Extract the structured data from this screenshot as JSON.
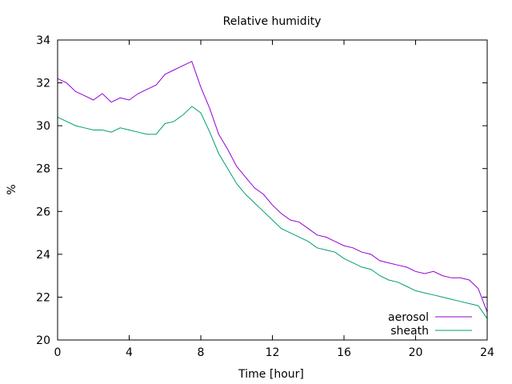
{
  "chart_data": {
    "type": "line",
    "title": "Relative humidity",
    "xlabel": "Time [hour]",
    "ylabel": "%",
    "xlim": [
      0,
      24
    ],
    "ylim": [
      20,
      34
    ],
    "xticks": [
      0,
      4,
      8,
      12,
      16,
      20,
      24
    ],
    "yticks": [
      20,
      22,
      24,
      26,
      28,
      30,
      32,
      34
    ],
    "grid": false,
    "legend_position": "bottom-right",
    "series": [
      {
        "name": "aerosol",
        "color": "#9400d3",
        "x": [
          0,
          0.5,
          1,
          1.5,
          2,
          2.5,
          3,
          3.5,
          4,
          4.5,
          5,
          5.5,
          6,
          6.5,
          7,
          7.5,
          8,
          8.5,
          9,
          9.5,
          10,
          10.5,
          11,
          11.5,
          12,
          12.5,
          13,
          13.5,
          14,
          14.5,
          15,
          15.5,
          16,
          16.5,
          17,
          17.5,
          18,
          18.5,
          19,
          19.5,
          20,
          20.5,
          21,
          21.5,
          22,
          22.5,
          23,
          23.5,
          24
        ],
        "y": [
          32.2,
          32.0,
          31.6,
          31.4,
          31.2,
          31.5,
          31.1,
          31.3,
          31.2,
          31.5,
          31.7,
          31.9,
          32.4,
          32.6,
          32.8,
          33.0,
          31.8,
          30.8,
          29.6,
          28.9,
          28.1,
          27.6,
          27.1,
          26.8,
          26.3,
          25.9,
          25.6,
          25.5,
          25.2,
          24.9,
          24.8,
          24.6,
          24.4,
          24.3,
          24.1,
          24.0,
          23.7,
          23.6,
          23.5,
          23.4,
          23.2,
          23.1,
          23.2,
          23.0,
          22.9,
          22.9,
          22.8,
          22.4,
          21.3
        ]
      },
      {
        "name": "sheath",
        "color": "#009e73",
        "x": [
          0,
          0.5,
          1,
          1.5,
          2,
          2.5,
          3,
          3.5,
          4,
          4.5,
          5,
          5.5,
          6,
          6.5,
          7,
          7.5,
          8,
          8.5,
          9,
          9.5,
          10,
          10.5,
          11,
          11.5,
          12,
          12.5,
          13,
          13.5,
          14,
          14.5,
          15,
          15.5,
          16,
          16.5,
          17,
          17.5,
          18,
          18.5,
          19,
          19.5,
          20,
          20.5,
          21,
          21.5,
          22,
          22.5,
          23,
          23.5,
          24
        ],
        "y": [
          30.4,
          30.2,
          30.0,
          29.9,
          29.8,
          29.8,
          29.7,
          29.9,
          29.8,
          29.7,
          29.6,
          29.6,
          30.1,
          30.2,
          30.5,
          30.9,
          30.6,
          29.7,
          28.7,
          28.0,
          27.3,
          26.8,
          26.4,
          26.0,
          25.6,
          25.2,
          25.0,
          24.8,
          24.6,
          24.3,
          24.2,
          24.1,
          23.8,
          23.6,
          23.4,
          23.3,
          23.0,
          22.8,
          22.7,
          22.5,
          22.3,
          22.2,
          22.1,
          22.0,
          21.9,
          21.8,
          21.7,
          21.6,
          21.0
        ]
      }
    ]
  }
}
